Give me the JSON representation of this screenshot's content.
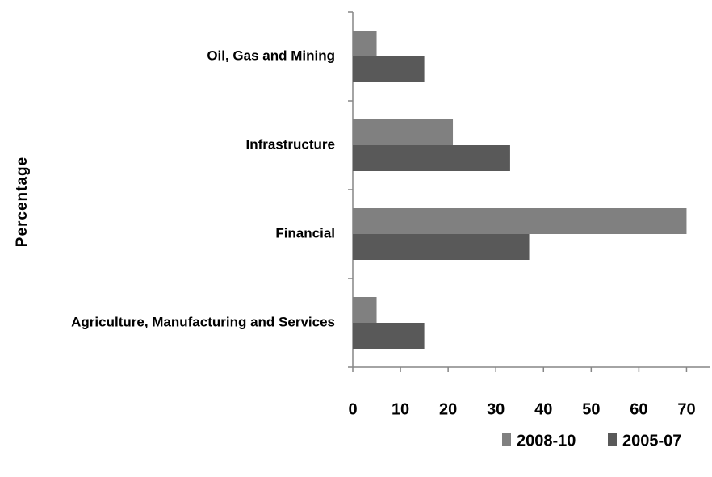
{
  "chart_data": {
    "type": "bar",
    "orientation": "horizontal",
    "y_label": "Percentage",
    "categories": [
      "Oil, Gas and Mining",
      "Infrastructure",
      "Financial",
      "Agriculture, Manufacturing and Services"
    ],
    "series": [
      {
        "name": "2008-10",
        "color": "#808080",
        "values": [
          5,
          21,
          70,
          5
        ]
      },
      {
        "name": "2005-07",
        "color": "#595959",
        "values": [
          15,
          33,
          37,
          15
        ]
      }
    ],
    "xlim": [
      0,
      75
    ],
    "xticks": [
      0,
      10,
      20,
      30,
      40,
      50,
      60,
      70
    ],
    "legend": "bottom-right"
  }
}
